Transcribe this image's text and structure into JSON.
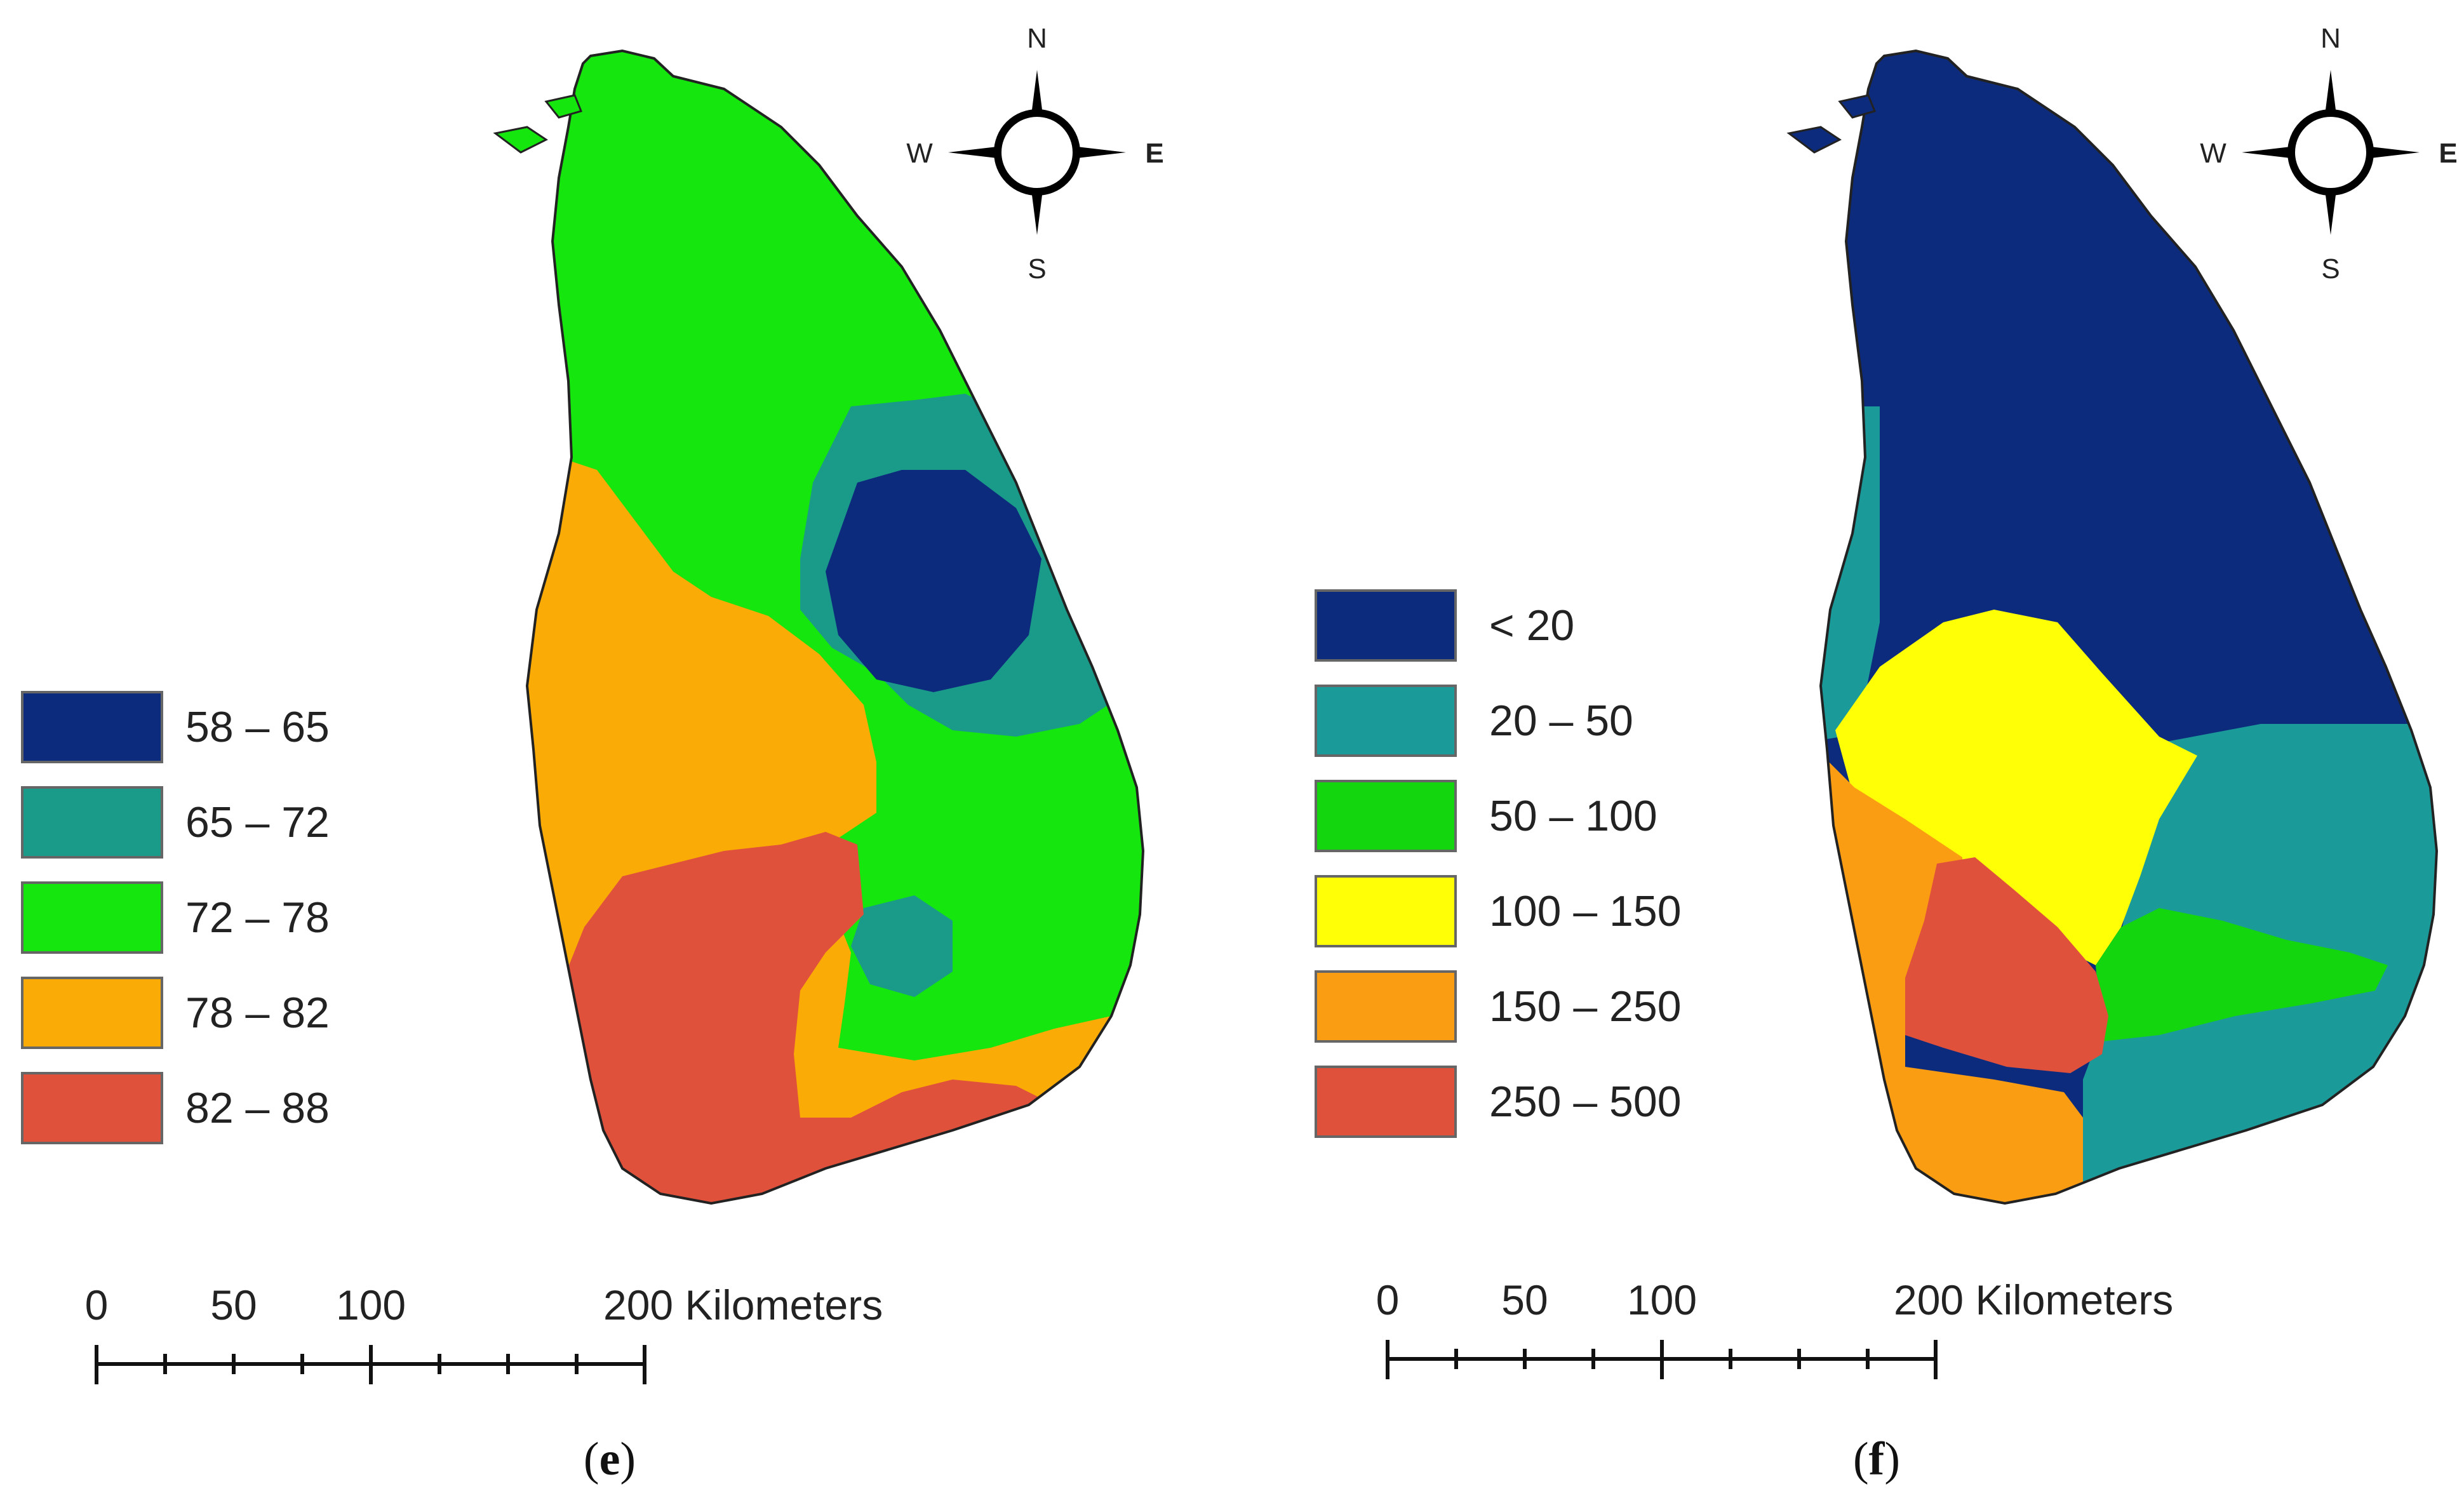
{
  "figure": {
    "panels": [
      {
        "id": "e",
        "caption_letter": "e",
        "legend": [
          {
            "label": "58 – 65",
            "color": "#0d2b7d"
          },
          {
            "label": "65 – 72",
            "color": "#1a9a88"
          },
          {
            "label": "72 – 78",
            "color": "#14e60e"
          },
          {
            "label": "78 – 82",
            "color": "#fbab05"
          },
          {
            "label": "82 – 88",
            "color": "#e0513c"
          }
        ],
        "compass": {
          "n": "N",
          "s": "S",
          "e": "E",
          "w": "W"
        },
        "scale_bar": {
          "ticks": [
            "0",
            "50",
            "100"
          ],
          "end_label": "200 Kilometers"
        }
      },
      {
        "id": "f",
        "caption_letter": "f",
        "legend": [
          {
            "label": "< 20",
            "color": "#0d2b7d"
          },
          {
            "label": "20 – 50",
            "color": "#1a9a98"
          },
          {
            "label": "50 – 100",
            "color": "#14d60e"
          },
          {
            "label": "100 – 150",
            "color": "#ffff05"
          },
          {
            "label": "150 – 250",
            "color": "#fb9d12"
          },
          {
            "label": "250 – 500",
            "color": "#e0513c"
          }
        ],
        "compass": {
          "n": "N",
          "s": "S",
          "e": "E",
          "w": "W"
        },
        "scale_bar": {
          "ticks": [
            "0",
            "50",
            "100"
          ],
          "end_label": "200 Kilometers"
        }
      }
    ]
  }
}
